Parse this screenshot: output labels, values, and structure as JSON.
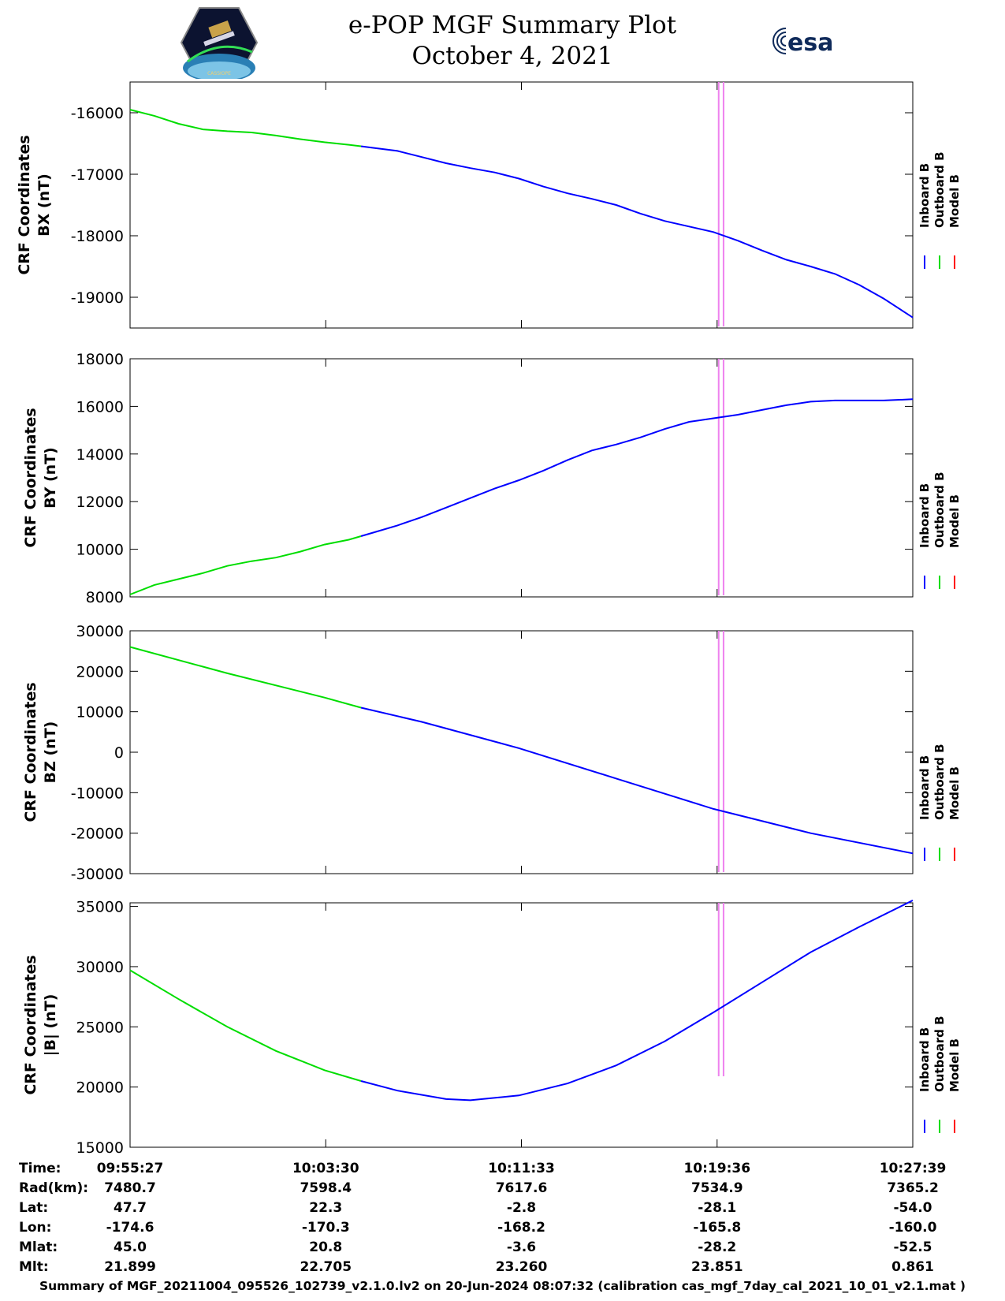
{
  "header": {
    "title": "e-POP MGF Summary Plot",
    "date": "October 4, 2021",
    "left_logo": "cassiope-mission-patch-icon",
    "right_logo_text": "esa"
  },
  "colors": {
    "inboard": "#0000ff",
    "outboard": "#00dd00",
    "model": "#ff0000",
    "marker": "#ee82ee"
  },
  "legend": [
    "Inboard B",
    "Outboard B",
    "Model B"
  ],
  "chart_data": [
    {
      "type": "line",
      "ylabel": [
        "CRF Coordinates",
        "BX (nT)"
      ],
      "ylim": [
        -19500,
        -15500
      ],
      "yticks": [
        -19000,
        -18000,
        -17000,
        -16000
      ],
      "x_ticks_min": [
        0,
        8.05,
        16.1,
        24.15,
        32.2
      ],
      "x": [
        0,
        1,
        2,
        3,
        4,
        5,
        6,
        7,
        8,
        9,
        10,
        11,
        12,
        13,
        14,
        15,
        16,
        17,
        18,
        19,
        20,
        21,
        22,
        23,
        24,
        25,
        26,
        27,
        28,
        29,
        30,
        31,
        32.2
      ],
      "series": [
        {
          "name": "Outboard B",
          "x_range": [
            0,
            9.5
          ],
          "values": [
            -15950,
            -16050,
            -16180,
            -16270,
            -16300,
            -16320,
            -16370,
            -16430,
            -16480,
            -16520,
            -16570,
            -16620,
            -16720,
            -16820,
            -16900,
            -16970,
            -17070,
            -17200,
            -17310,
            -17400,
            -17500,
            -17640,
            -17760,
            -17850,
            -17940,
            -18080,
            -18240,
            -18390,
            -18500,
            -18620,
            -18800,
            -19020,
            -19330
          ]
        },
        {
          "name": "Inboard B",
          "x_range": [
            9.5,
            32.2
          ],
          "values": [
            -15950,
            -16050,
            -16180,
            -16270,
            -16300,
            -16320,
            -16370,
            -16430,
            -16480,
            -16520,
            -16570,
            -16620,
            -16720,
            -16820,
            -16900,
            -16970,
            -17070,
            -17200,
            -17310,
            -17400,
            -17500,
            -17640,
            -17760,
            -17850,
            -17940,
            -18080,
            -18240,
            -18390,
            -18500,
            -18620,
            -18800,
            -19020,
            -19330
          ]
        }
      ]
    },
    {
      "type": "line",
      "ylabel": [
        "CRF Coordinates",
        "BY (nT)"
      ],
      "ylim": [
        8000,
        18000
      ],
      "yticks": [
        8000,
        10000,
        12000,
        14000,
        16000,
        18000
      ],
      "x": [
        0,
        1,
        2,
        3,
        4,
        5,
        6,
        7,
        8,
        9,
        10,
        11,
        12,
        13,
        14,
        15,
        16,
        17,
        18,
        19,
        20,
        21,
        22,
        23,
        24,
        25,
        26,
        27,
        28,
        29,
        30,
        31,
        32.2
      ],
      "series": [
        {
          "name": "Outboard B",
          "x_range": [
            0,
            9.5
          ],
          "values": [
            8100,
            8500,
            8750,
            9000,
            9300,
            9500,
            9650,
            9900,
            10200,
            10400,
            10700,
            11000,
            11350,
            11750,
            12150,
            12550,
            12900,
            13300,
            13750,
            14150,
            14400,
            14700,
            15050,
            15350,
            15500,
            15650,
            15850,
            16050,
            16200,
            16250,
            16250,
            16250,
            16300
          ]
        },
        {
          "name": "Inboard B",
          "x_range": [
            9.5,
            32.2
          ],
          "values": [
            8100,
            8500,
            8750,
            9000,
            9300,
            9500,
            9650,
            9900,
            10200,
            10400,
            10700,
            11000,
            11350,
            11750,
            12150,
            12550,
            12900,
            13300,
            13750,
            14150,
            14400,
            14700,
            15050,
            15350,
            15500,
            15650,
            15850,
            16050,
            16200,
            16250,
            16250,
            16250,
            16300
          ]
        }
      ]
    },
    {
      "type": "line",
      "ylabel": [
        "CRF Coordinates",
        "BZ (nT)"
      ],
      "ylim": [
        -30000,
        30000
      ],
      "yticks": [
        -30000,
        -20000,
        -10000,
        0,
        10000,
        20000,
        30000
      ],
      "x": [
        0,
        4,
        8,
        9.5,
        12,
        16,
        20,
        24,
        28,
        32.2
      ],
      "series": [
        {
          "name": "Outboard B",
          "x_range": [
            0,
            9.5
          ],
          "values": [
            26000,
            19500,
            13500,
            11000,
            7500,
            1000,
            -6500,
            -14000,
            -20000,
            -25000
          ]
        },
        {
          "name": "Inboard B",
          "x_range": [
            9.5,
            32.2
          ],
          "values": [
            26000,
            19500,
            13500,
            11000,
            7500,
            1000,
            -6500,
            -14000,
            -20000,
            -25000
          ]
        }
      ]
    },
    {
      "type": "line",
      "ylabel": [
        "CRF Coordinates",
        "|B| (nT)"
      ],
      "ylim": [
        15000,
        35300
      ],
      "yticks": [
        15000,
        20000,
        25000,
        30000,
        35000
      ],
      "x": [
        0,
        2,
        4,
        6,
        8,
        9.5,
        11,
        13,
        14,
        16,
        18,
        20,
        22,
        24,
        26,
        28,
        30,
        32.2
      ],
      "series": [
        {
          "name": "Outboard B",
          "x_range": [
            0,
            9.5
          ],
          "values": [
            29700,
            27300,
            25000,
            23000,
            21400,
            20500,
            19700,
            19000,
            18900,
            19300,
            20300,
            21800,
            23800,
            26200,
            28700,
            31200,
            33300,
            35500
          ]
        },
        {
          "name": "Inboard B",
          "x_range": [
            9.5,
            32.2
          ],
          "values": [
            29700,
            27300,
            25000,
            23000,
            21400,
            20500,
            19700,
            19000,
            18900,
            19300,
            20300,
            21800,
            23800,
            26200,
            28700,
            31200,
            33300,
            35500
          ]
        }
      ]
    }
  ],
  "marker_times_min": [
    24.15,
    24.35
  ],
  "table": {
    "labels": [
      "Time:",
      "Rad(km):",
      "Lat:",
      "Lon:",
      "Mlat:",
      "Mlt:"
    ],
    "columns": [
      [
        "09:55:27",
        "7480.7",
        "47.7",
        "-174.6",
        "45.0",
        "21.899"
      ],
      [
        "10:03:30",
        "7598.4",
        "22.3",
        "-170.3",
        "20.8",
        "22.705"
      ],
      [
        "10:11:33",
        "7617.6",
        "-2.8",
        "-168.2",
        "-3.6",
        "23.260"
      ],
      [
        "10:19:36",
        "7534.9",
        "-28.1",
        "-165.8",
        "-28.2",
        "23.851"
      ],
      [
        "10:27:39",
        "7365.2",
        "-54.0",
        "-160.0",
        "-52.5",
        "0.861"
      ]
    ]
  },
  "footer": "Summary of MGF_20211004_095526_102739_v2.1.0.lv2 on 20-Jun-2024 08:07:32 (calibration cas_mgf_7day_cal_2021_10_01_v2.1.mat )"
}
